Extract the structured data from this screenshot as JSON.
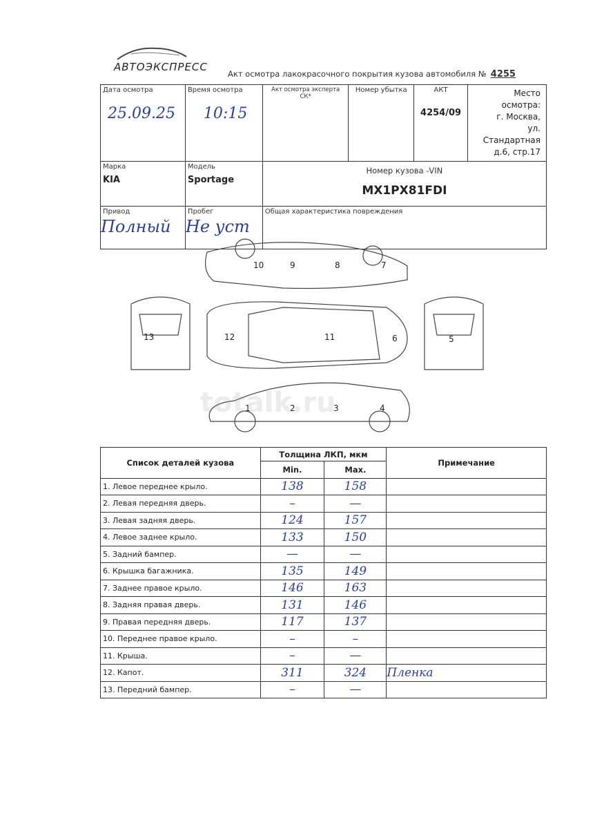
{
  "header": {
    "logo_text": "АВТОЭКСПРЕСС",
    "title": "Акт осмотра лакокрасочного покрытия кузова автомобиля №",
    "act_number": "4255"
  },
  "info": {
    "date_label": "Дата осмотра",
    "date_value": "25.09.25",
    "time_label": "Время осмотра",
    "time_value": "10:15",
    "expert_act_label": "Акт осмотра эксперта СК*",
    "loss_number_label": "Номер убытка",
    "act_label": "АКТ",
    "act_value": "4254/09",
    "place_lines": [
      "Место осмотра:",
      "г. Москва,",
      "ул. Стандартная",
      "д.6, стр.17"
    ],
    "brand_label": "Марка",
    "brand_value": "KIA",
    "model_label": "Модель",
    "model_value": "Sportage",
    "vin_label": "Номер кузова -VIN",
    "vin_value": "MX1PX81FDI",
    "drive_label": "Привод",
    "drive_value": "Полный",
    "mileage_label": "Пробег",
    "mileage_value": "Не уст",
    "damage_label": "Общая характеристика повреждения"
  },
  "diagram": {
    "labels": [
      "1",
      "2",
      "3",
      "4",
      "5",
      "6",
      "7",
      "8",
      "9",
      "10",
      "11",
      "12",
      "13"
    ]
  },
  "watermark": "totalk.ru",
  "parts_table": {
    "headers": {
      "parts": "Список деталей кузова",
      "thickness": "Толщина ЛКП, мкм",
      "min": "Min.",
      "max": "Max.",
      "note": "Примечание"
    },
    "rows": [
      {
        "part": "1. Левое переднее крыло.",
        "min": "138",
        "max": "158",
        "note": ""
      },
      {
        "part": "2. Левая передняя дверь.",
        "min": "–",
        "max": "—",
        "note": ""
      },
      {
        "part": "3. Левая задняя дверь.",
        "min": "124",
        "max": "157",
        "note": ""
      },
      {
        "part": "4. Левое заднее крыло.",
        "min": "133",
        "max": "150",
        "note": ""
      },
      {
        "part": "5. Задний бампер.",
        "min": "—",
        "max": "—",
        "note": ""
      },
      {
        "part": "6. Крышка багажника.",
        "min": "135",
        "max": "149",
        "note": ""
      },
      {
        "part": "7. Заднее правое крыло.",
        "min": "146",
        "max": "163",
        "note": ""
      },
      {
        "part": "8. Задняя правая дверь.",
        "min": "131",
        "max": "146",
        "note": ""
      },
      {
        "part": "9. Правая передняя дверь.",
        "min": "117",
        "max": "137",
        "note": ""
      },
      {
        "part": "10. Переднее правое крыло.",
        "min": "–",
        "max": "–",
        "note": ""
      },
      {
        "part": "11. Крыша.",
        "min": "–",
        "max": "—",
        "note": ""
      },
      {
        "part": "12. Капот.",
        "min": "311",
        "max": "324",
        "note": "Пленка"
      },
      {
        "part": "13. Передний бампер.",
        "min": "–",
        "max": "—",
        "note": ""
      }
    ]
  }
}
